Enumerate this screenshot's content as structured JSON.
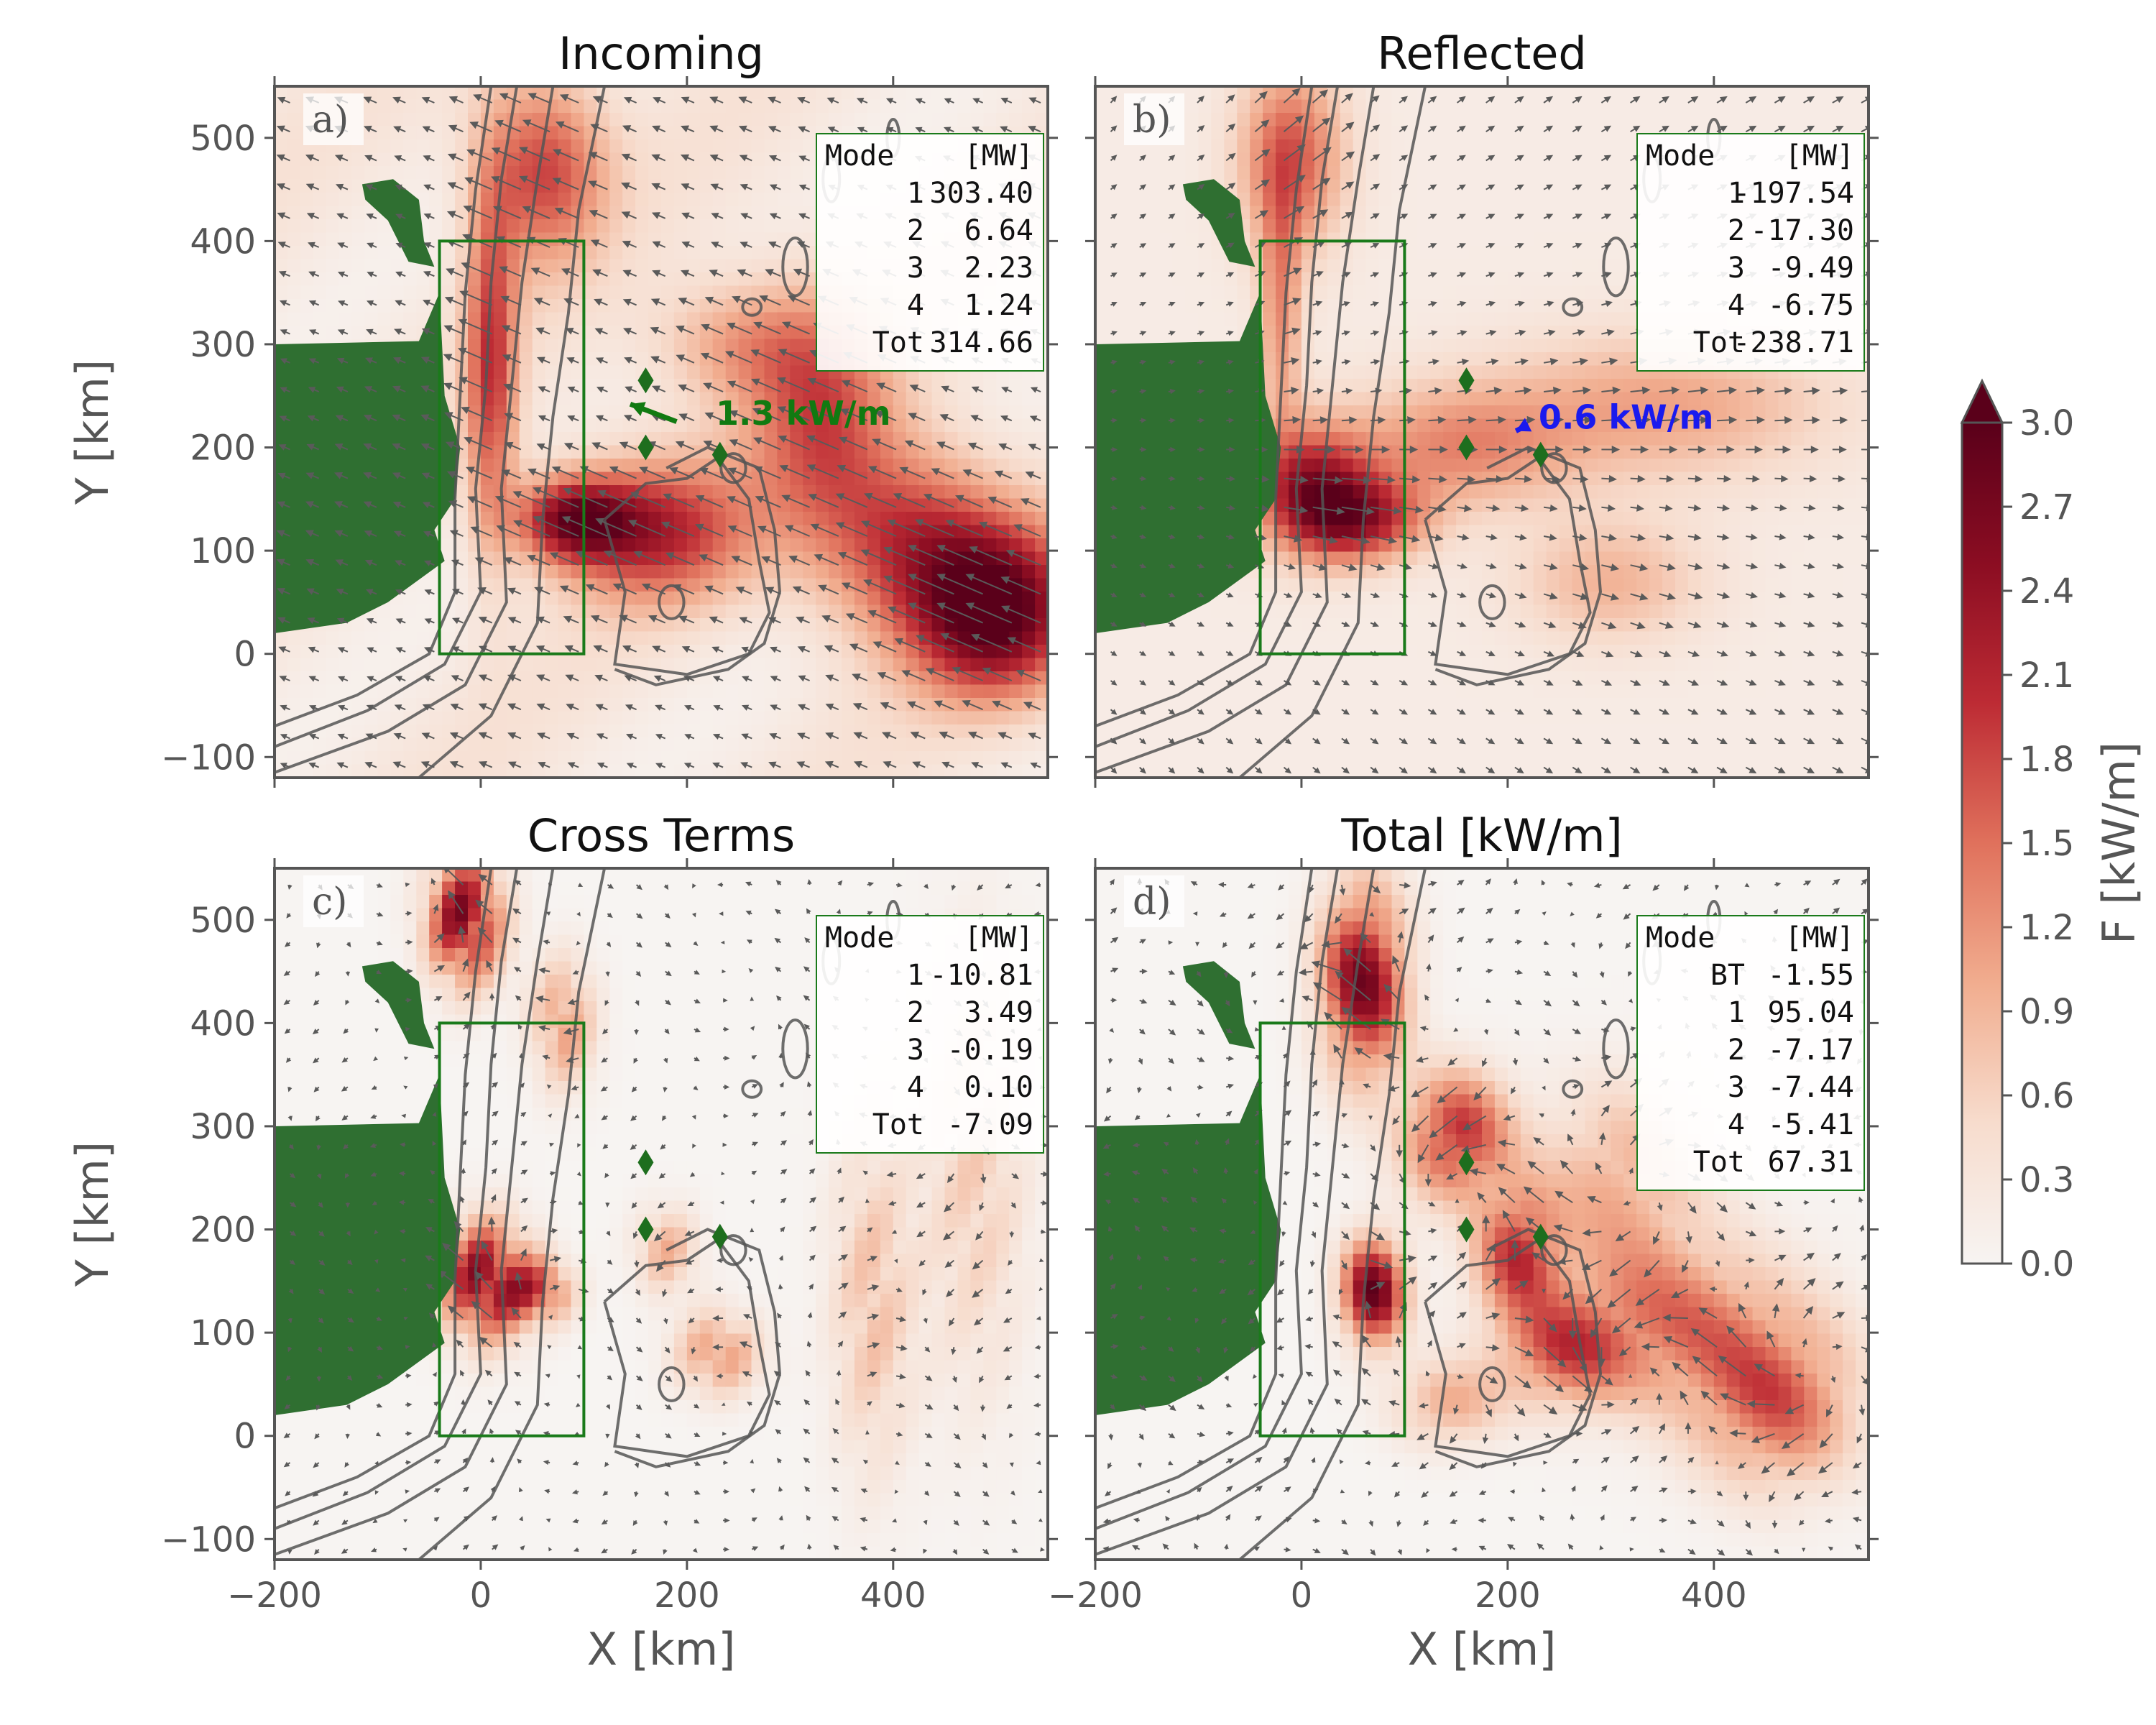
{
  "chart_data": {
    "type": "heatmap",
    "xlabel": "X [km]",
    "ylabel": "Y [km]",
    "xlim": [
      -200,
      550
    ],
    "ylim": [
      -120,
      550
    ],
    "xticks": [
      -200,
      0,
      200,
      400
    ],
    "yticks": [
      -100,
      0,
      100,
      200,
      300,
      400,
      500
    ],
    "xtick_labels": [
      "−200",
      "0",
      "200",
      "400"
    ],
    "ytick_labels": [
      "−100",
      "0",
      "100",
      "200",
      "300",
      "400",
      "500"
    ],
    "box": {
      "x0": -40,
      "x1": 100,
      "y0": 0,
      "y1": 400
    },
    "markers": [
      {
        "x": 160,
        "y": 265
      },
      {
        "x": 160,
        "y": 200
      },
      {
        "x": 232,
        "y": 193
      }
    ],
    "colorbar": {
      "label": "F [kW/m]",
      "min": 0.0,
      "max": 3.0,
      "extend": "max",
      "ticks": [
        "0.0",
        "0.3",
        "0.6",
        "0.9",
        "1.2",
        "1.5",
        "1.8",
        "2.1",
        "2.4",
        "2.7",
        "3.0"
      ],
      "colors": [
        "#f7f4f2",
        "#f7dccd",
        "#f1ad8f",
        "#e0715c",
        "#bd2b34",
        "#8b0d22",
        "#5a001a"
      ]
    },
    "land_color": "#2f6f31",
    "box_color": "#1a7a1a",
    "panels": [
      {
        "id": "a",
        "letter": "a)",
        "title": "Incoming",
        "table_header": [
          "Mode",
          "[MW]"
        ],
        "table_rows": [
          [
            "1",
            "303.40"
          ],
          [
            "2",
            "6.64"
          ],
          [
            "3",
            "2.23"
          ],
          [
            "4",
            "1.24"
          ],
          [
            "Tot",
            "314.66"
          ]
        ],
        "scale_label": "1.3 kW/m",
        "scale_color": "#117a11"
      },
      {
        "id": "b",
        "letter": "b)",
        "title": "Reflected",
        "table_header": [
          "Mode",
          "[MW]"
        ],
        "table_rows": [
          [
            "1",
            "-197.54"
          ],
          [
            "2",
            "-17.30"
          ],
          [
            "3",
            "-9.49"
          ],
          [
            "4",
            "-6.75"
          ],
          [
            "Tot",
            "-238.71"
          ]
        ],
        "scale_label": "0.6 kW/m",
        "scale_color": "#1a1aee"
      },
      {
        "id": "c",
        "letter": "c)",
        "title": "Cross Terms",
        "table_header": [
          "Mode",
          "[MW]"
        ],
        "table_rows": [
          [
            "1",
            "-10.81"
          ],
          [
            "2",
            "3.49"
          ],
          [
            "3",
            "-0.19"
          ],
          [
            "4",
            "0.10"
          ],
          [
            "Tot",
            "-7.09"
          ]
        ]
      },
      {
        "id": "d",
        "letter": "d)",
        "title": "Total [kW/m]",
        "table_header": [
          "Mode",
          "[MW]"
        ],
        "table_rows": [
          [
            "BT",
            "-1.55"
          ],
          [
            "1",
            "95.04"
          ],
          [
            "2",
            "-7.17"
          ],
          [
            "3",
            "-7.44"
          ],
          [
            "4",
            "-5.41"
          ],
          [
            "Tot",
            "67.31"
          ]
        ]
      }
    ]
  }
}
